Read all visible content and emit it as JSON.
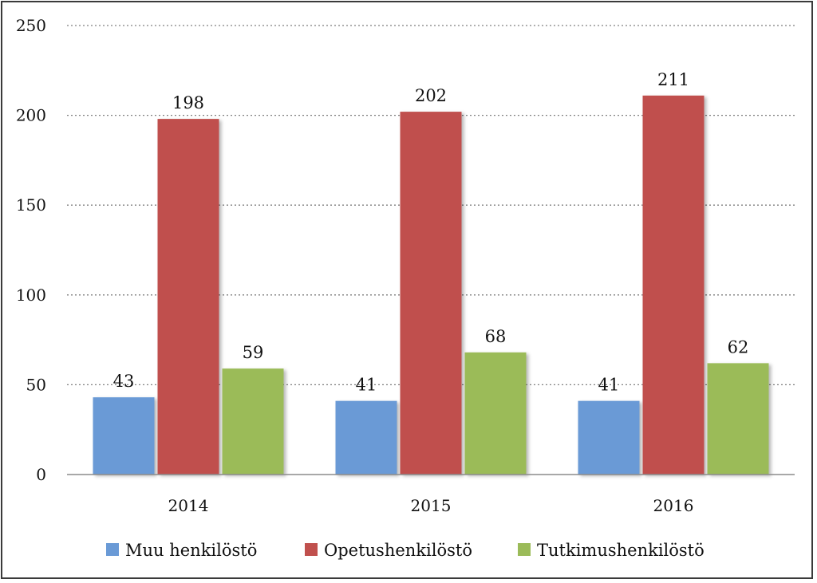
{
  "chart_data": {
    "type": "bar",
    "categories": [
      "2014",
      "2015",
      "2016"
    ],
    "series": [
      {
        "name": "Muu henkilöstö",
        "values": [
          43,
          41,
          41
        ],
        "color": "#6a9ad6"
      },
      {
        "name": "Opetushenkilöstö",
        "values": [
          198,
          202,
          211
        ],
        "color": "#c0504d"
      },
      {
        "name": "Tutkimushenkilöstö",
        "values": [
          59,
          68,
          62
        ],
        "color": "#9bbb59"
      }
    ],
    "title": "",
    "xlabel": "",
    "ylabel": "",
    "ylim": [
      0,
      250
    ],
    "yticks": [
      0,
      50,
      100,
      150,
      200,
      250
    ],
    "grid": true,
    "legend_position": "bottom",
    "data_labels": true
  }
}
